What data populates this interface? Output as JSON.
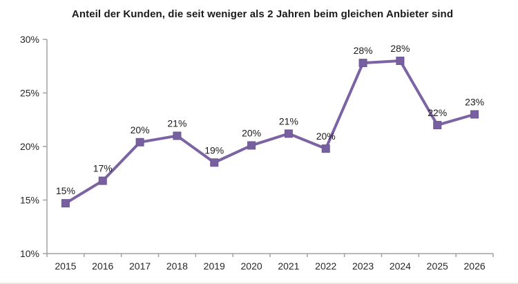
{
  "chart_data": {
    "type": "line",
    "title": "Anteil der Kunden, die seit weniger als 2 Jahren beim gleichen Anbieter sind",
    "categories": [
      "2015",
      "2016",
      "2017",
      "2018",
      "2019",
      "2020",
      "2021",
      "2022",
      "2023",
      "2024",
      "2025",
      "2026"
    ],
    "series": [
      {
        "name": "Anteil der Kunden",
        "values": [
          14.7,
          16.8,
          20.4,
          21.0,
          18.5,
          20.1,
          21.2,
          19.8,
          27.8,
          28.0,
          22.0,
          23.0
        ],
        "data_labels": [
          "15%",
          "17%",
          "20%",
          "21%",
          "19%",
          "20%",
          "21%",
          "20%",
          "28%",
          "28%",
          "22%",
          "23%"
        ],
        "color": "#7C63A3",
        "marker": "square"
      }
    ],
    "xlabel": "",
    "ylabel": "",
    "y_axis": {
      "min": 10,
      "max": 30,
      "step": 5,
      "tick_labels": [
        "10%",
        "15%",
        "20%",
        "25%",
        "30%"
      ]
    },
    "grid": false,
    "legend": "none",
    "colors": {
      "axis": "#a0a0a0",
      "tick_text": "#262626",
      "data_label_text": "#1a1a1a",
      "line": "#7C63A3",
      "marker_fill": "#77609F",
      "marker_stroke": "#6e5795"
    }
  }
}
